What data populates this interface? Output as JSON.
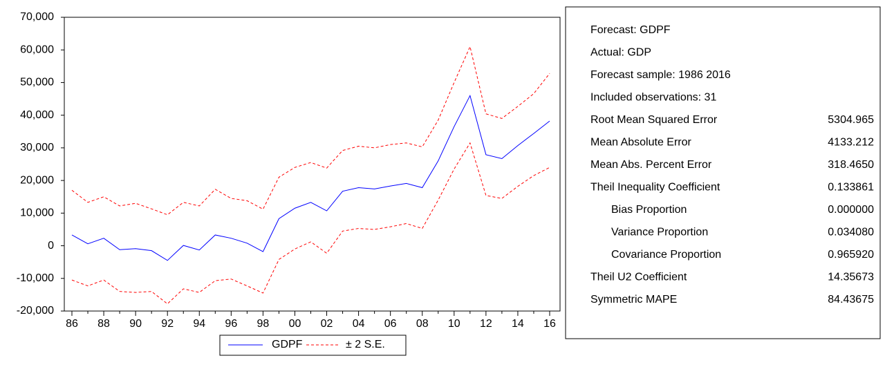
{
  "chart_data": {
    "type": "line",
    "categories": [
      "86",
      null,
      "88",
      null,
      "90",
      null,
      "92",
      null,
      "94",
      null,
      "96",
      null,
      "98",
      null,
      "00",
      null,
      "02",
      null,
      "04",
      null,
      "06",
      null,
      "08",
      null,
      "10",
      null,
      "12",
      null,
      "14",
      null,
      "16"
    ],
    "series": [
      {
        "name": "GDPF",
        "color": "#0000ff",
        "values": [
          3300,
          600,
          2300,
          -1200,
          -900,
          -1500,
          -4500,
          100,
          -1300,
          3300,
          2300,
          800,
          -1800,
          8300,
          11500,
          13300,
          10700,
          16700,
          17800,
          17400,
          18300,
          19100,
          17800,
          26000,
          36500,
          46000,
          27900,
          26700,
          30700,
          34400,
          38200
        ]
      }
    ],
    "bands": {
      "name": "± 2 S.E.",
      "color": "#ff0000",
      "upper": [
        17000,
        13300,
        15000,
        12200,
        13000,
        11300,
        9500,
        13300,
        12200,
        17300,
        14500,
        13800,
        11200,
        21000,
        24000,
        25500,
        23800,
        29200,
        30500,
        30000,
        31000,
        31500,
        30300,
        38500,
        50000,
        61000,
        40400,
        39000,
        42700,
        46600,
        52800
      ],
      "lower": [
        -10500,
        -12300,
        -10500,
        -14000,
        -14300,
        -14000,
        -17800,
        -13200,
        -14300,
        -10700,
        -10200,
        -12300,
        -14500,
        -4200,
        -1000,
        1200,
        -2300,
        4500,
        5300,
        5000,
        5800,
        6800,
        5300,
        14000,
        23500,
        31500,
        15400,
        14500,
        18200,
        21500,
        24000
      ]
    },
    "ylim": [
      -20000,
      70000
    ],
    "yticks": [
      {
        "value": -20000,
        "label": "-20,000"
      },
      {
        "value": -10000,
        "label": "-10,000"
      },
      0,
      {
        "value": 10000,
        "label": "10,000"
      },
      {
        "value": 20000,
        "label": "20,000"
      },
      {
        "value": 30000,
        "label": "30,000"
      },
      {
        "value": 40000,
        "label": "40,000"
      },
      {
        "value": 50000,
        "label": "50,000"
      },
      {
        "value": 60000,
        "label": "60,000"
      },
      {
        "value": 70000,
        "label": "70,000"
      }
    ]
  },
  "stats": {
    "header": [
      "Forecast: GDPF",
      "Actual: GDP",
      "Forecast sample: 1986 2016",
      "Included observations: 31"
    ],
    "rows": [
      [
        "Root Mean Squared Error",
        "5304.965"
      ],
      [
        "Mean Absolute Error",
        "4133.212"
      ],
      [
        "Mean Abs. Percent Error",
        "318.4650"
      ],
      [
        "Theil Inequality Coefficient",
        "0.133861"
      ],
      [
        "Bias Proportion",
        "0.000000"
      ],
      [
        "Variance Proportion",
        "0.034080"
      ],
      [
        "Covariance Proportion",
        "0.965920"
      ],
      [
        "Theil U2 Coefficient",
        "14.35673"
      ],
      [
        "Symmetric MAPE",
        "84.43675"
      ]
    ]
  }
}
